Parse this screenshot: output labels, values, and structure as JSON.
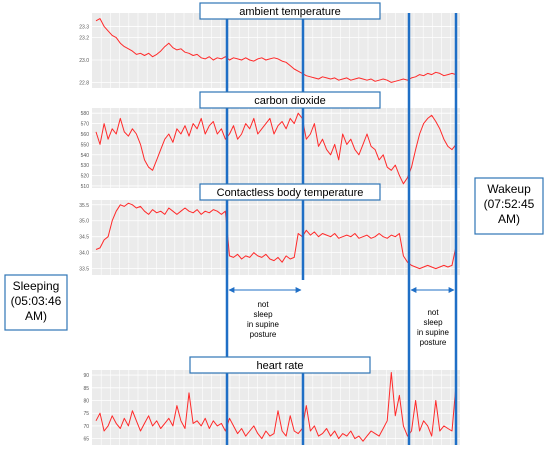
{
  "chart_data": [
    {
      "type": "line",
      "title": "ambient temperature",
      "ylim": [
        22.75,
        23.42
      ],
      "yticks": [
        22.8,
        23.0,
        23.2,
        23.3
      ],
      "ytick_labels": [
        "22.8",
        "23.0",
        "23.2",
        "23.3"
      ],
      "series": [
        {
          "color": "#ff2a2a",
          "values": [
            23.35,
            23.37,
            23.3,
            23.26,
            23.22,
            23.2,
            23.15,
            23.12,
            23.1,
            23.08,
            23.05,
            23.06,
            23.04,
            23.06,
            23.03,
            23.05,
            23.08,
            23.12,
            23.15,
            23.11,
            23.09,
            23.1,
            23.07,
            23.06,
            23.04,
            23.05,
            23.02,
            23.01,
            23.03,
            23.0,
            23.02,
            23.01,
            23.03,
            23.0,
            23.02,
            23.01,
            23.0,
            23.02,
            23.0,
            22.99,
            23.01,
            23.02,
            23.0,
            23.01,
            23.02,
            23.01,
            22.99,
            22.98,
            22.95,
            22.92,
            22.9,
            22.88,
            22.86,
            22.85,
            22.84,
            22.83,
            22.85,
            22.84,
            22.83,
            22.84,
            22.82,
            22.83,
            22.84,
            22.82,
            22.83,
            22.84,
            22.83,
            22.82,
            22.83,
            22.81,
            22.82,
            22.83,
            22.82,
            22.8,
            22.81,
            22.82,
            22.83,
            22.82,
            22.84,
            22.85,
            22.87,
            22.86,
            22.88,
            22.87,
            22.89,
            22.88,
            22.86,
            22.87,
            22.88,
            22.87
          ]
        }
      ]
    },
    {
      "type": "line",
      "title": "carbon dioxide",
      "ylim": [
        508,
        585
      ],
      "yticks": [
        510,
        520,
        530,
        540,
        550,
        560,
        570,
        580
      ],
      "ytick_labels": [
        "510",
        "520",
        "530",
        "540",
        "550",
        "560",
        "570",
        "580"
      ],
      "series": [
        {
          "color": "#ff2a2a",
          "values": [
            562,
            550,
            570,
            555,
            565,
            560,
            575,
            562,
            558,
            565,
            560,
            550,
            535,
            528,
            525,
            535,
            545,
            555,
            560,
            552,
            565,
            560,
            568,
            558,
            570,
            565,
            575,
            560,
            568,
            572,
            560,
            565,
            555,
            560,
            568,
            555,
            560,
            570,
            565,
            575,
            560,
            565,
            570,
            575,
            560,
            568,
            572,
            565,
            575,
            570,
            580,
            575,
            555,
            560,
            570,
            548,
            555,
            545,
            540,
            550,
            535,
            560,
            550,
            555,
            545,
            540,
            550,
            560,
            548,
            545,
            535,
            540,
            528,
            525,
            530,
            520,
            512,
            518,
            528,
            545,
            560,
            570,
            575,
            578,
            572,
            565,
            555,
            548,
            545,
            550
          ]
        }
      ]
    },
    {
      "type": "line",
      "title": "Contactless body temperature",
      "ylim": [
        33.3,
        35.65
      ],
      "yticks": [
        33.5,
        34.0,
        34.5,
        35.0,
        35.5
      ],
      "ytick_labels": [
        "33.5",
        "34.0",
        "34.5",
        "35.0",
        "35.5"
      ],
      "series": [
        {
          "color": "#ff2a2a",
          "values": [
            34.1,
            34.15,
            34.4,
            34.5,
            35.0,
            35.3,
            35.5,
            35.45,
            35.55,
            35.5,
            35.4,
            35.45,
            35.3,
            35.2,
            35.35,
            35.25,
            35.3,
            35.2,
            35.4,
            35.3,
            35.2,
            35.3,
            35.4,
            35.3,
            35.25,
            35.35,
            35.2,
            35.3,
            35.25,
            35.35,
            35.3,
            35.2,
            35.3,
            33.9,
            33.85,
            33.95,
            33.8,
            33.9,
            33.85,
            34.0,
            33.9,
            33.85,
            33.95,
            33.8,
            33.75,
            33.85,
            33.7,
            33.9,
            33.8,
            33.85,
            34.6,
            34.5,
            34.7,
            34.55,
            34.65,
            34.5,
            34.6,
            34.55,
            34.5,
            34.6,
            34.45,
            34.5,
            34.55,
            34.5,
            34.6,
            34.45,
            34.5,
            34.55,
            34.45,
            34.5,
            34.6,
            34.5,
            34.45,
            34.55,
            34.5,
            34.6,
            33.9,
            33.7,
            33.6,
            33.55,
            33.5,
            33.55,
            33.6,
            33.55,
            33.5,
            33.55,
            33.6,
            33.55,
            33.6,
            34.2
          ]
        }
      ]
    },
    {
      "type": "line",
      "title": "heart rate",
      "ylim": [
        62.5,
        92
      ],
      "yticks": [
        65,
        70,
        75,
        80,
        85,
        90
      ],
      "ytick_labels": [
        "65",
        "70",
        "75",
        "80",
        "85",
        "90"
      ],
      "series": [
        {
          "color": "#ff2a2a",
          "values": [
            72,
            75,
            68,
            70,
            74,
            71,
            69,
            73,
            70,
            76,
            72,
            68,
            71,
            74,
            70,
            72,
            69,
            71,
            73,
            70,
            78,
            72,
            69,
            83,
            71,
            72,
            70,
            73,
            69,
            72,
            70,
            71,
            68,
            73,
            70,
            67,
            69,
            66,
            68,
            70,
            67,
            65,
            68,
            66,
            67,
            76,
            68,
            66,
            74,
            68,
            67,
            69,
            78,
            68,
            70,
            66,
            67,
            69,
            66,
            68,
            65,
            67,
            66,
            68,
            65,
            66,
            64,
            66,
            68,
            67,
            66,
            69,
            72,
            91,
            74,
            82,
            70,
            66,
            68,
            80,
            68,
            72,
            70,
            66,
            80,
            68,
            70,
            69,
            68,
            86
          ]
        }
      ]
    }
  ],
  "annotations": {
    "sleeping_label": [
      "Sleeping",
      "(05:03:46",
      "AM)"
    ],
    "wakeup_label": [
      "Wakeup",
      "(07:52:45",
      "AM)"
    ],
    "interval_note_1": [
      "not",
      "sleep",
      "in  supine",
      "posture"
    ],
    "interval_note_2": [
      "not",
      "sleep",
      "in  supine",
      "posture"
    ]
  },
  "colors": {
    "trace": "#ff2a2a",
    "marker_line": "#1f6fc6",
    "label_border": "#2e75b6",
    "panel_bg": "#ebebeb",
    "grid": "#ffffff"
  }
}
